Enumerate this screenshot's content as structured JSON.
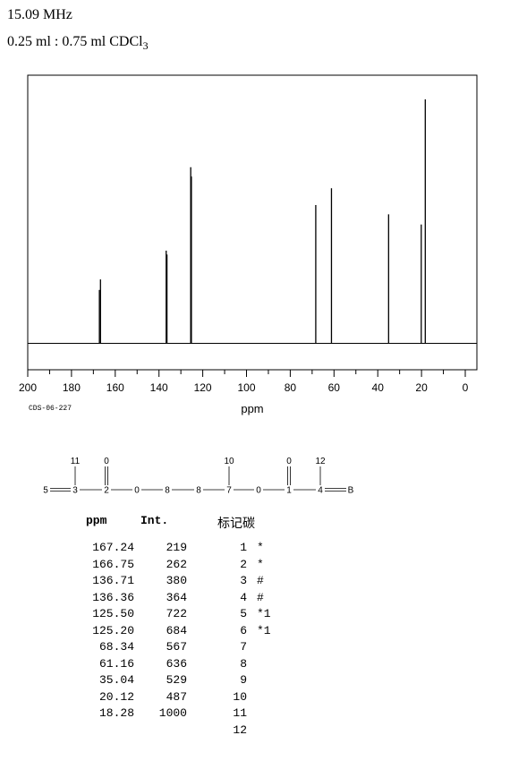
{
  "header": {
    "frequency": "15.09 MHz",
    "solvent_prefix": "0.25 ml : 0.75 ml CDCl",
    "solvent_sub": "3"
  },
  "code": "CDS-06-227",
  "chart_data": {
    "type": "line",
    "xlabel": "ppm",
    "xlim": [
      200,
      0
    ],
    "x_ticks": [
      200,
      180,
      160,
      140,
      120,
      100,
      80,
      60,
      40,
      20,
      0
    ],
    "tick_labels": [
      "200",
      "180",
      "160",
      "140",
      "120",
      "100",
      "80",
      "60",
      "40",
      "20",
      "0"
    ],
    "y_max": 1000,
    "peaks": [
      {
        "ppm": 167.24,
        "int": 219
      },
      {
        "ppm": 166.75,
        "int": 262
      },
      {
        "ppm": 136.71,
        "int": 380
      },
      {
        "ppm": 136.36,
        "int": 364
      },
      {
        "ppm": 125.5,
        "int": 722
      },
      {
        "ppm": 125.2,
        "int": 684
      },
      {
        "ppm": 68.34,
        "int": 567
      },
      {
        "ppm": 61.16,
        "int": 636
      },
      {
        "ppm": 35.04,
        "int": 529
      },
      {
        "ppm": 20.12,
        "int": 487
      },
      {
        "ppm": 18.28,
        "int": 1000
      }
    ]
  },
  "structure": {
    "chain": [
      "5",
      "3",
      "2",
      "0",
      "8",
      "8",
      "7",
      "0",
      "1",
      "4",
      "B"
    ],
    "branches": [
      {
        "on": "3",
        "label": "11"
      },
      {
        "on": "2",
        "label": "0"
      },
      {
        "on": "7",
        "label": "10"
      },
      {
        "on": "1",
        "label": "0"
      },
      {
        "on": "4",
        "label": "12"
      }
    ]
  },
  "table": {
    "headers": {
      "ppm": "ppm",
      "int": "Int.",
      "carbon": "标记碳"
    },
    "rows": [
      {
        "ppm": "167.24",
        "int": "219",
        "num": "1",
        "mark": "*"
      },
      {
        "ppm": "166.75",
        "int": "262",
        "num": "2",
        "mark": "*"
      },
      {
        "ppm": "136.71",
        "int": "380",
        "num": "3",
        "mark": "#"
      },
      {
        "ppm": "136.36",
        "int": "364",
        "num": "4",
        "mark": "#"
      },
      {
        "ppm": "125.50",
        "int": "722",
        "num": "5",
        "mark": "*1"
      },
      {
        "ppm": "125.20",
        "int": "684",
        "num": "6",
        "mark": "*1"
      },
      {
        "ppm": "68.34",
        "int": "567",
        "num": "7",
        "mark": ""
      },
      {
        "ppm": "61.16",
        "int": "636",
        "num": "8",
        "mark": ""
      },
      {
        "ppm": "35.04",
        "int": "529",
        "num": "9",
        "mark": ""
      },
      {
        "ppm": "20.12",
        "int": "487",
        "num": "10",
        "mark": ""
      },
      {
        "ppm": "18.28",
        "int": "1000",
        "num": "11",
        "mark": ""
      },
      {
        "ppm": "",
        "int": "",
        "num": "12",
        "mark": ""
      }
    ]
  }
}
